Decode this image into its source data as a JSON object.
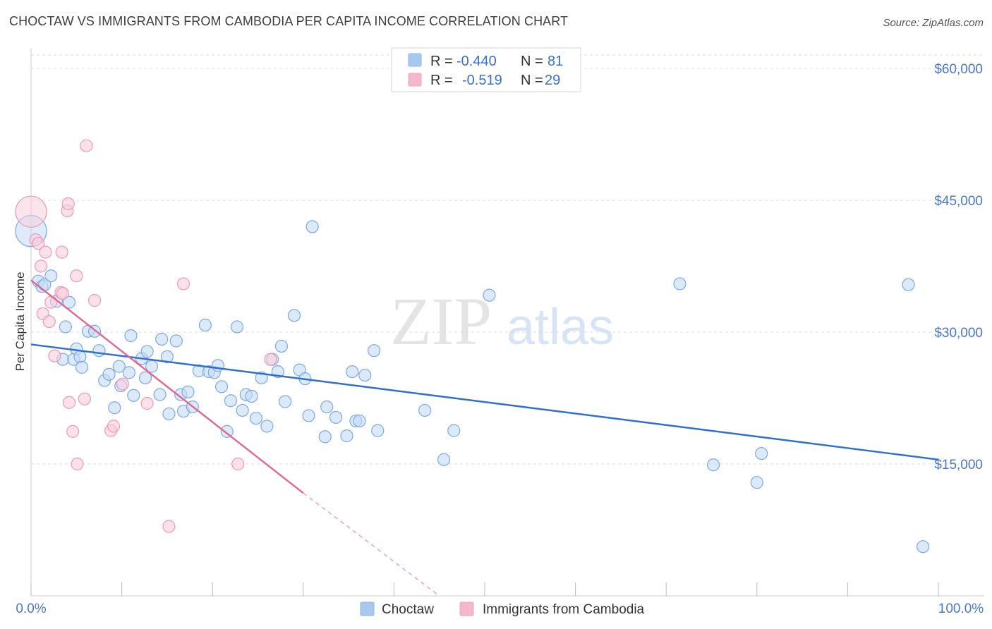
{
  "title": "CHOCTAW VS IMMIGRANTS FROM CAMBODIA PER CAPITA INCOME CORRELATION CHART",
  "source": "Source: ZipAtlas.com",
  "watermark": {
    "zip": "ZIP",
    "atlas": "atlas"
  },
  "legend": {
    "rows": [
      {
        "r_label": "R =",
        "r_value": "-0.440",
        "n_label": "N =",
        "n_value": "81",
        "color": "#a9c8f0"
      },
      {
        "r_label": "R =",
        "r_value": "-0.519",
        "n_label": "N =",
        "n_value": "29",
        "color": "#f5b8cb"
      }
    ]
  },
  "chart_data": {
    "type": "scatter",
    "title": "CHOCTAW VS IMMIGRANTS FROM CAMBODIA PER CAPITA INCOME CORRELATION CHART",
    "xlabel": "",
    "ylabel": "Per Capita Income",
    "xlim": [
      0,
      100
    ],
    "ylim": [
      0,
      62000
    ],
    "x_tick_labels": [
      "0.0%",
      "100.0%"
    ],
    "y_ticks": [
      15000,
      30000,
      45000,
      60000
    ],
    "y_tick_labels": [
      "$15,000",
      "$30,000",
      "$45,000",
      "$60,000"
    ],
    "grid": true,
    "series": [
      {
        "name": "Choctaw",
        "color": "#7aaae6",
        "fill": "#c5daf5",
        "R": -0.44,
        "N": 81,
        "trend": {
          "x": [
            0,
            100
          ],
          "y": [
            28600,
            15500
          ],
          "dashed_after": null
        },
        "points": [
          [
            0,
            41500
          ],
          [
            0.8,
            35800
          ],
          [
            1.2,
            35200
          ],
          [
            1.5,
            35400
          ],
          [
            2.2,
            36400
          ],
          [
            2.8,
            33500
          ],
          [
            4.2,
            33400
          ],
          [
            3.5,
            26900
          ],
          [
            3.8,
            30600
          ],
          [
            4.7,
            26900
          ],
          [
            5.0,
            28100
          ],
          [
            5.4,
            27200
          ],
          [
            5.6,
            26000
          ],
          [
            6.3,
            30100
          ],
          [
            7.0,
            30100
          ],
          [
            7.5,
            27900
          ],
          [
            8.1,
            24500
          ],
          [
            8.6,
            25200
          ],
          [
            9.2,
            21400
          ],
          [
            9.7,
            26100
          ],
          [
            9.9,
            23900
          ],
          [
            10.8,
            25400
          ],
          [
            11.0,
            29600
          ],
          [
            11.3,
            22800
          ],
          [
            12.2,
            27000
          ],
          [
            12.6,
            24800
          ],
          [
            12.8,
            27800
          ],
          [
            13.3,
            26100
          ],
          [
            14.2,
            22900
          ],
          [
            14.4,
            29200
          ],
          [
            15.0,
            27200
          ],
          [
            15.2,
            20700
          ],
          [
            16.0,
            29000
          ],
          [
            16.5,
            22900
          ],
          [
            16.8,
            21000
          ],
          [
            17.3,
            23200
          ],
          [
            17.8,
            21500
          ],
          [
            18.5,
            25600
          ],
          [
            19.2,
            30800
          ],
          [
            19.6,
            25500
          ],
          [
            20.2,
            25400
          ],
          [
            20.6,
            26200
          ],
          [
            21.0,
            23800
          ],
          [
            21.6,
            18700
          ],
          [
            22.0,
            22200
          ],
          [
            22.7,
            30600
          ],
          [
            23.3,
            21100
          ],
          [
            23.7,
            22900
          ],
          [
            24.3,
            22700
          ],
          [
            24.8,
            20200
          ],
          [
            25.4,
            24800
          ],
          [
            26.0,
            19300
          ],
          [
            26.6,
            26900
          ],
          [
            27.2,
            25500
          ],
          [
            27.6,
            28400
          ],
          [
            28.0,
            22100
          ],
          [
            29.0,
            31900
          ],
          [
            29.6,
            25700
          ],
          [
            30.2,
            24700
          ],
          [
            30.6,
            20500
          ],
          [
            31.0,
            42000
          ],
          [
            32.4,
            18100
          ],
          [
            32.6,
            21500
          ],
          [
            33.6,
            20300
          ],
          [
            34.8,
            18200
          ],
          [
            35.4,
            25500
          ],
          [
            35.8,
            19900
          ],
          [
            36.2,
            19900
          ],
          [
            36.8,
            25100
          ],
          [
            37.8,
            27900
          ],
          [
            38.2,
            18800
          ],
          [
            43.4,
            21100
          ],
          [
            45.5,
            15500
          ],
          [
            46.6,
            18800
          ],
          [
            50.5,
            34200
          ],
          [
            71.5,
            35500
          ],
          [
            75.2,
            14900
          ],
          [
            80.0,
            12900
          ],
          [
            80.5,
            16200
          ],
          [
            96.7,
            35400
          ],
          [
            98.3,
            5600
          ]
        ]
      },
      {
        "name": "Immigrants from Cambodia",
        "color": "#ec9ab5",
        "fill": "#f8cfdc",
        "R": -0.519,
        "N": 29,
        "trend": {
          "x": [
            0,
            30
          ],
          "y": [
            35900,
            11700
          ],
          "dashed_to": [
            45,
            0
          ]
        },
        "points": [
          [
            0,
            43700
          ],
          [
            0.5,
            40500
          ],
          [
            0.8,
            40100
          ],
          [
            1.1,
            37500
          ],
          [
            1.3,
            32100
          ],
          [
            1.6,
            39100
          ],
          [
            2.0,
            31200
          ],
          [
            2.2,
            33400
          ],
          [
            2.6,
            27300
          ],
          [
            3.3,
            34500
          ],
          [
            3.4,
            39100
          ],
          [
            3.5,
            34400
          ],
          [
            4.0,
            43800
          ],
          [
            4.1,
            44600
          ],
          [
            4.2,
            22000
          ],
          [
            4.6,
            18700
          ],
          [
            5.0,
            36400
          ],
          [
            5.1,
            15000
          ],
          [
            5.9,
            22400
          ],
          [
            6.1,
            51200
          ],
          [
            7.0,
            33600
          ],
          [
            8.8,
            18800
          ],
          [
            9.1,
            19300
          ],
          [
            10.1,
            24100
          ],
          [
            12.8,
            21900
          ],
          [
            15.2,
            7900
          ],
          [
            16.8,
            35500
          ],
          [
            22.8,
            15000
          ],
          [
            26.4,
            26900
          ]
        ]
      }
    ]
  },
  "bottom_legend": [
    {
      "label": "Choctaw",
      "color": "#a9c8f0"
    },
    {
      "label": "Immigrants from Cambodia",
      "color": "#f5b8cb"
    }
  ]
}
